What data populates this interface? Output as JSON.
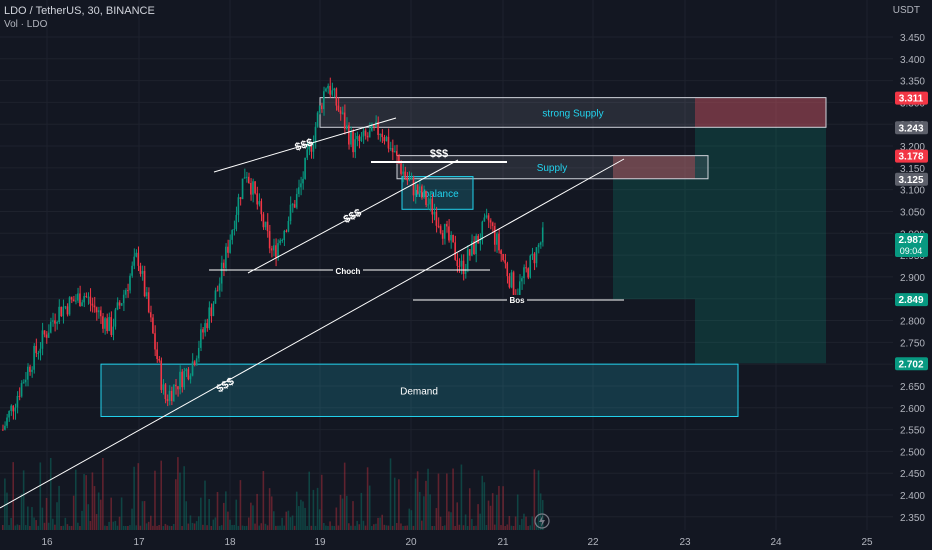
{
  "header": {
    "symbol_line": "LDO / TetherUS, 30, BINANCE",
    "volume_line": "Vol · LDO"
  },
  "currency": "USDT",
  "chart_data": {
    "type": "candlestick",
    "ylim": [
      2.325,
      3.5
    ],
    "y_ticks": [
      "3.450",
      "3.400",
      "3.350",
      "3.300",
      "3.250",
      "3.200",
      "3.150",
      "3.100",
      "3.050",
      "3.000",
      "2.950",
      "2.900",
      "2.850",
      "2.800",
      "2.750",
      "2.700",
      "2.650",
      "2.600",
      "2.550",
      "2.500",
      "2.450",
      "2.400",
      "2.350"
    ],
    "x_ticks": [
      "16",
      "17",
      "18",
      "19",
      "20",
      "21",
      "22",
      "23",
      "24",
      "25"
    ],
    "price_path": [
      [
        "16",
        2.55
      ],
      [
        "16",
        2.7
      ],
      [
        "16",
        2.82
      ],
      [
        "17",
        2.86
      ],
      [
        "17",
        2.78
      ],
      [
        "17",
        2.95
      ],
      [
        "17",
        2.62
      ],
      [
        "18",
        2.7
      ],
      [
        "18",
        2.88
      ],
      [
        "18",
        3.15
      ],
      [
        "18",
        2.95
      ],
      [
        "19",
        3.1
      ],
      [
        "19",
        3.35
      ],
      [
        "19",
        3.2
      ],
      [
        "19",
        3.24
      ],
      [
        "20",
        3.12
      ],
      [
        "20",
        3.05
      ],
      [
        "20",
        2.92
      ],
      [
        "20",
        3.03
      ],
      [
        "21",
        2.86
      ],
      [
        "21",
        2.99
      ]
    ],
    "price_labels": [
      {
        "value": "3.311",
        "color": "#f23645"
      },
      {
        "value": "3.243",
        "color": "#5d606b"
      },
      {
        "value": "3.178",
        "color": "#f23645"
      },
      {
        "value": "3.125",
        "color": "#5d606b"
      },
      {
        "value": "2.987",
        "sub": "09:04",
        "color": "#089981"
      },
      {
        "value": "2.849",
        "color": "#089981"
      },
      {
        "value": "2.702",
        "color": "#089981"
      }
    ],
    "zones": {
      "strong_supply": {
        "label": "strong Supply",
        "from": 3.243,
        "to": 3.311
      },
      "supply": {
        "label": "Supply",
        "from": 3.125,
        "to": 3.178
      },
      "imbalance": {
        "label": "Inbalance",
        "from": 3.055,
        "to": 3.13
      },
      "demand": {
        "label": "Demand",
        "from": 2.58,
        "to": 2.7
      }
    },
    "annotations": [
      "$$$",
      "$$$",
      "$$$",
      "$$$",
      "Choch",
      "Bos"
    ]
  }
}
